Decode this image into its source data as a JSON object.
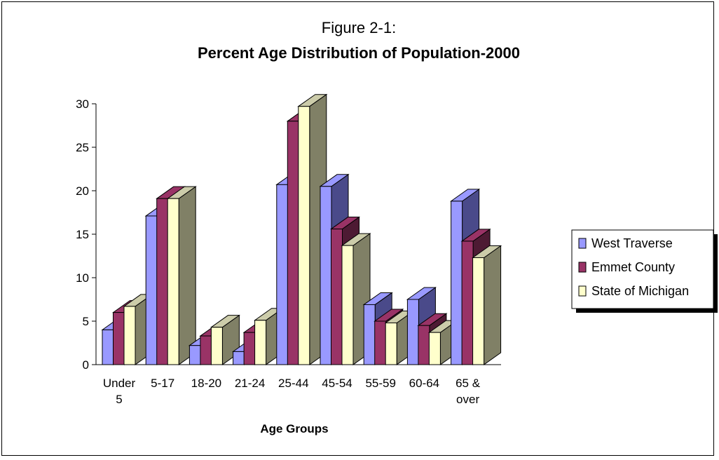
{
  "chart_data": {
    "type": "bar",
    "title": "Figure 2-1:",
    "subtitle": "Percent Age Distribution of Population-2000",
    "xlabel": "Age Groups",
    "ylabel": "",
    "ylim": [
      0,
      30
    ],
    "yticks": [
      0,
      5,
      10,
      15,
      20,
      25,
      30
    ],
    "categories": [
      "Under 5",
      "5-17",
      "18-20",
      "21-24",
      "25-44",
      "45-54",
      "55-59",
      "60-64",
      "65 & over"
    ],
    "category_lines": [
      [
        "Under",
        "5"
      ],
      [
        "5-17"
      ],
      [
        "18-20"
      ],
      [
        "21-24"
      ],
      [
        "25-44"
      ],
      [
        "45-54"
      ],
      [
        "55-59"
      ],
      [
        "60-64"
      ],
      [
        "65 &",
        "over"
      ]
    ],
    "series": [
      {
        "name": "West Traverse",
        "color": "#9999ff",
        "side": "#4a4a8a",
        "top": "#9999ff",
        "values": [
          4.0,
          17.1,
          2.2,
          1.5,
          20.7,
          20.5,
          6.9,
          7.5,
          18.8
        ]
      },
      {
        "name": "Emmet County",
        "color": "#993366",
        "side": "#4d1a33",
        "top": "#993366",
        "values": [
          6.0,
          19.1,
          3.3,
          3.7,
          28.0,
          15.6,
          5.0,
          4.5,
          14.2
        ]
      },
      {
        "name": "State of Michigan",
        "color": "#ffffcc",
        "side": "#808066",
        "top": "#ccccaa",
        "values": [
          6.7,
          19.1,
          4.3,
          5.1,
          29.7,
          13.7,
          4.8,
          3.7,
          12.3
        ]
      }
    ],
    "legend_position": "right",
    "grid": false
  }
}
